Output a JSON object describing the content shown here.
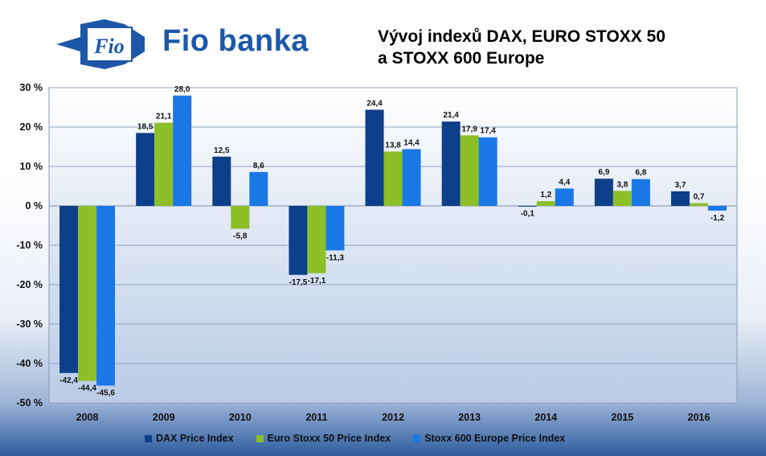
{
  "brand": {
    "name": "Fio banka",
    "logo_text": "Fio"
  },
  "chart_data": {
    "type": "bar",
    "title_lines": [
      "Vývoj indexů DAX, EURO STOXX 50",
      "a STOXX 600 Europe"
    ],
    "categories": [
      "2008",
      "2009",
      "2010",
      "2011",
      "2012",
      "2013",
      "2014",
      "2015",
      "2016"
    ],
    "series": [
      {
        "name": "DAX Price Index",
        "color": "#0d3f8a",
        "values": [
          -42.4,
          18.5,
          12.5,
          -17.5,
          24.4,
          21.4,
          -0.1,
          6.9,
          3.7
        ],
        "labels": [
          "-42,4",
          "18,5",
          "12,5",
          "-17,5",
          "24,4",
          "21,4",
          "-0,1",
          "6,9",
          "3,7"
        ]
      },
      {
        "name": "Euro Stoxx 50 Price Index",
        "color": "#8cbf28",
        "values": [
          -44.4,
          21.1,
          -5.8,
          -17.1,
          13.8,
          17.9,
          1.2,
          3.8,
          0.7
        ],
        "labels": [
          "-44,4",
          "21,1",
          "-5,8",
          "-17,1",
          "13,8",
          "17,9",
          "1,2",
          "3,8",
          "0,7"
        ]
      },
      {
        "name": "Stoxx 600 Europe Price Index",
        "color": "#1a78e6",
        "values": [
          -45.6,
          28.0,
          8.6,
          -11.3,
          14.4,
          17.4,
          4.4,
          6.8,
          -1.2
        ],
        "labels": [
          "-45,6",
          "28,0",
          "8,6",
          "-11,3",
          "14,4",
          "17,4",
          "4,4",
          "6,8",
          "-1,2"
        ]
      }
    ],
    "yticks": [
      30,
      20,
      10,
      0,
      -10,
      -20,
      -30,
      -40,
      -50
    ],
    "ytick_labels": [
      "30 %",
      "20 %",
      "10 %",
      "0 %",
      "-10 %",
      "-20 %",
      "-30 %",
      "-40 %",
      "-50 %"
    ],
    "ylim": [
      -50,
      30
    ],
    "grid": true,
    "legend_position": "bottom"
  }
}
